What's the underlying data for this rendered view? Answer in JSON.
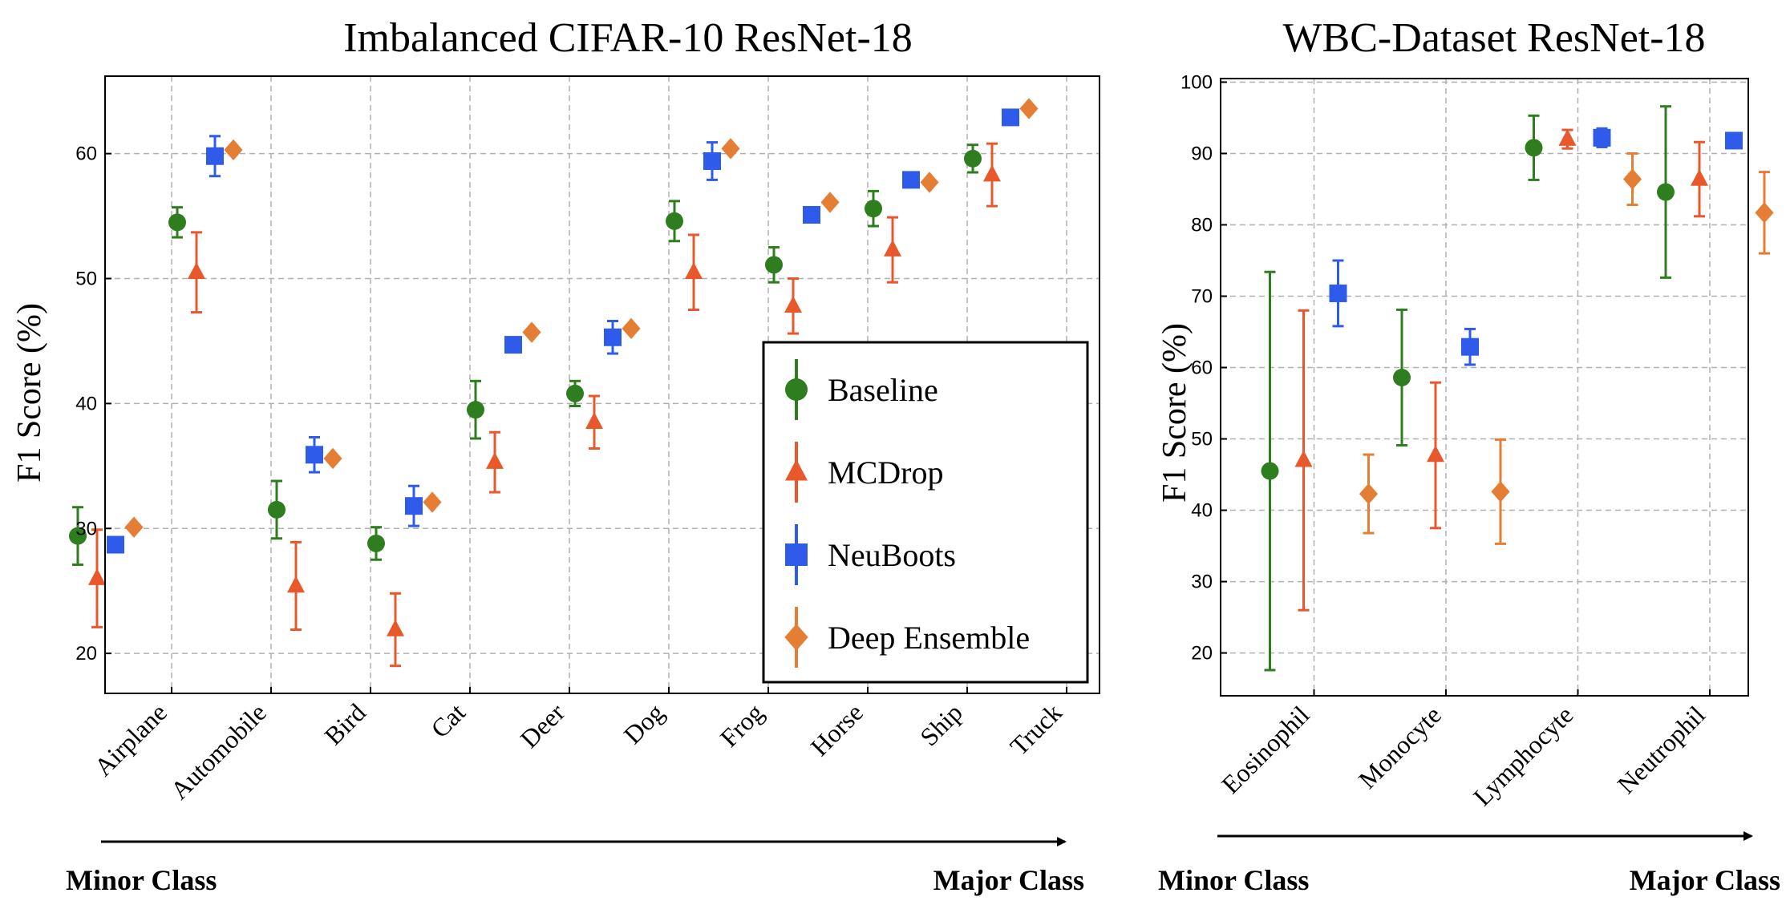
{
  "colors": {
    "Baseline": "#2e7d1f",
    "MCDrop": "#e8582a",
    "NeuBoots": "#2f5bea",
    "Deep Ensemble": "#e57e35"
  },
  "arrows": {
    "minor_label": "Minor Class",
    "major_label": "Major Class"
  },
  "legend": {
    "items": [
      {
        "name": "Baseline",
        "marker": "circle"
      },
      {
        "name": "MCDrop",
        "marker": "triangle"
      },
      {
        "name": "NeuBoots",
        "marker": "square"
      },
      {
        "name": "Deep Ensemble",
        "marker": "diamond"
      }
    ]
  },
  "chart_data": [
    {
      "type": "scatter",
      "title": "Imbalanced CIFAR-10 ResNet-18",
      "ylabel": "F1 Score (%)",
      "xlabel": "",
      "ylim": [
        16.8,
        66.2
      ],
      "yticks": [
        20,
        30,
        40,
        50,
        60
      ],
      "grid": true,
      "legend_position": "lower-right",
      "categories": [
        "Airplane",
        "Automobile",
        "Bird",
        "Cat",
        "Deer",
        "Dog",
        "Frog",
        "Horse",
        "Ship",
        "Truck"
      ],
      "series": [
        {
          "name": "Baseline",
          "marker": "circle",
          "values": [
            29.4,
            54.5,
            31.5,
            28.8,
            39.5,
            40.8,
            54.6,
            51.1,
            55.6,
            59.6
          ],
          "errors": [
            2.3,
            1.2,
            2.3,
            1.3,
            2.3,
            1.0,
            1.6,
            1.4,
            1.4,
            1.1
          ]
        },
        {
          "name": "MCDrop",
          "marker": "triangle",
          "values": [
            26.0,
            50.5,
            25.4,
            21.9,
            35.3,
            38.5,
            50.5,
            47.8,
            52.3,
            58.3
          ],
          "errors": [
            3.9,
            3.2,
            3.5,
            2.9,
            2.4,
            2.1,
            3.0,
            2.2,
            2.6,
            2.5
          ]
        },
        {
          "name": "NeuBoots",
          "marker": "square",
          "values": [
            28.7,
            59.8,
            35.9,
            31.8,
            44.7,
            45.3,
            59.4,
            55.1,
            57.9,
            62.9
          ],
          "errors": [
            0.0,
            1.6,
            1.4,
            1.6,
            0.0,
            1.3,
            1.5,
            0.0,
            0.0,
            0.0
          ]
        },
        {
          "name": "Deep Ensemble",
          "marker": "diamond",
          "values": [
            30.1,
            60.3,
            35.6,
            32.1,
            45.7,
            46.0,
            60.4,
            56.1,
            57.7,
            63.6
          ],
          "errors": [
            0,
            0,
            0,
            0,
            0,
            0,
            0,
            0,
            0,
            0
          ]
        }
      ]
    },
    {
      "type": "scatter",
      "title": "WBC-Dataset ResNet-18",
      "ylabel": "F1 Score (%)",
      "xlabel": "",
      "ylim": [
        14,
        100.5
      ],
      "yticks": [
        20,
        30,
        40,
        50,
        60,
        70,
        80,
        90,
        100
      ],
      "grid": true,
      "categories": [
        "Eosinophil",
        "Monocyte",
        "Lymphocyte",
        "Neutrophil"
      ],
      "series": [
        {
          "name": "Baseline",
          "marker": "circle",
          "values": [
            45.5,
            58.6,
            90.8,
            84.6
          ],
          "errors": [
            27.9,
            9.5,
            4.5,
            12.0
          ]
        },
        {
          "name": "MCDrop",
          "marker": "triangle",
          "values": [
            47.0,
            47.7,
            92.0,
            86.4
          ],
          "errors": [
            21.0,
            10.2,
            1.3,
            5.2
          ]
        },
        {
          "name": "NeuBoots",
          "marker": "square",
          "values": [
            70.4,
            62.9,
            92.2,
            91.8
          ],
          "errors": [
            4.6,
            2.5,
            1.3,
            0.0
          ]
        },
        {
          "name": "Deep Ensemble",
          "marker": "diamond",
          "values": [
            42.3,
            42.6,
            86.4,
            81.7
          ],
          "errors": [
            5.5,
            7.3,
            3.6,
            5.7
          ]
        }
      ]
    }
  ]
}
